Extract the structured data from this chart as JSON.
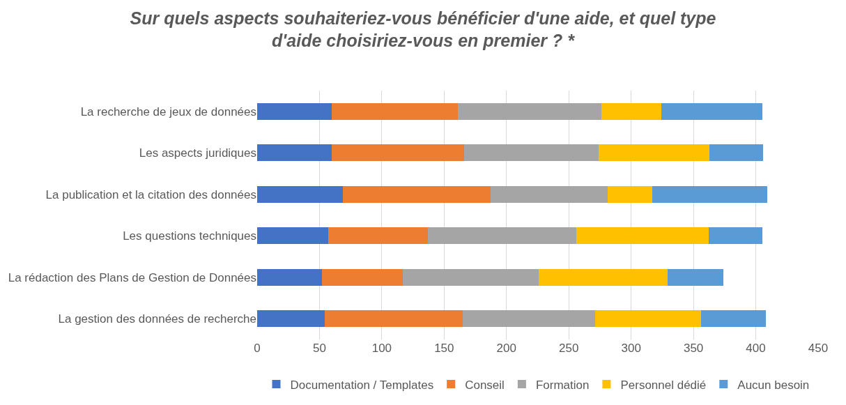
{
  "chart_data": {
    "type": "bar",
    "orientation": "horizontal",
    "stacked": true,
    "title": "Sur quels aspects souhaiteriez-vous bénéficier d'une aide, et quel type d'aide choisiriez-vous en premier ? *",
    "categories": [
      "La recherche de jeux de données",
      "Les aspects juridiques",
      "La publication et la citation des données",
      "Les questions techniques",
      "La rédaction des Plans de Gestion de Données",
      "La gestion des données de recherche"
    ],
    "series": [
      {
        "name": "Documentation / Templates",
        "color": "#4472c4",
        "values": [
          60,
          60,
          69,
          57,
          52,
          54
        ]
      },
      {
        "name": "Conseil",
        "color": "#ed7d31",
        "values": [
          101,
          106,
          118,
          80,
          65,
          111
        ]
      },
      {
        "name": "Formation",
        "color": "#a5a5a5",
        "values": [
          115,
          108,
          94,
          119,
          109,
          106
        ]
      },
      {
        "name": "Personnel dédié",
        "color": "#ffc000",
        "values": [
          48,
          89,
          36,
          106,
          103,
          85
        ]
      },
      {
        "name": "Aucun besoin",
        "color": "#5b9bd5",
        "values": [
          81,
          43,
          92,
          43,
          45,
          52
        ]
      }
    ],
    "xlim": [
      0,
      450
    ],
    "xticks": [
      0,
      50,
      100,
      150,
      200,
      250,
      300,
      350,
      400,
      450
    ],
    "grid": "x",
    "legend": "bottom"
  }
}
